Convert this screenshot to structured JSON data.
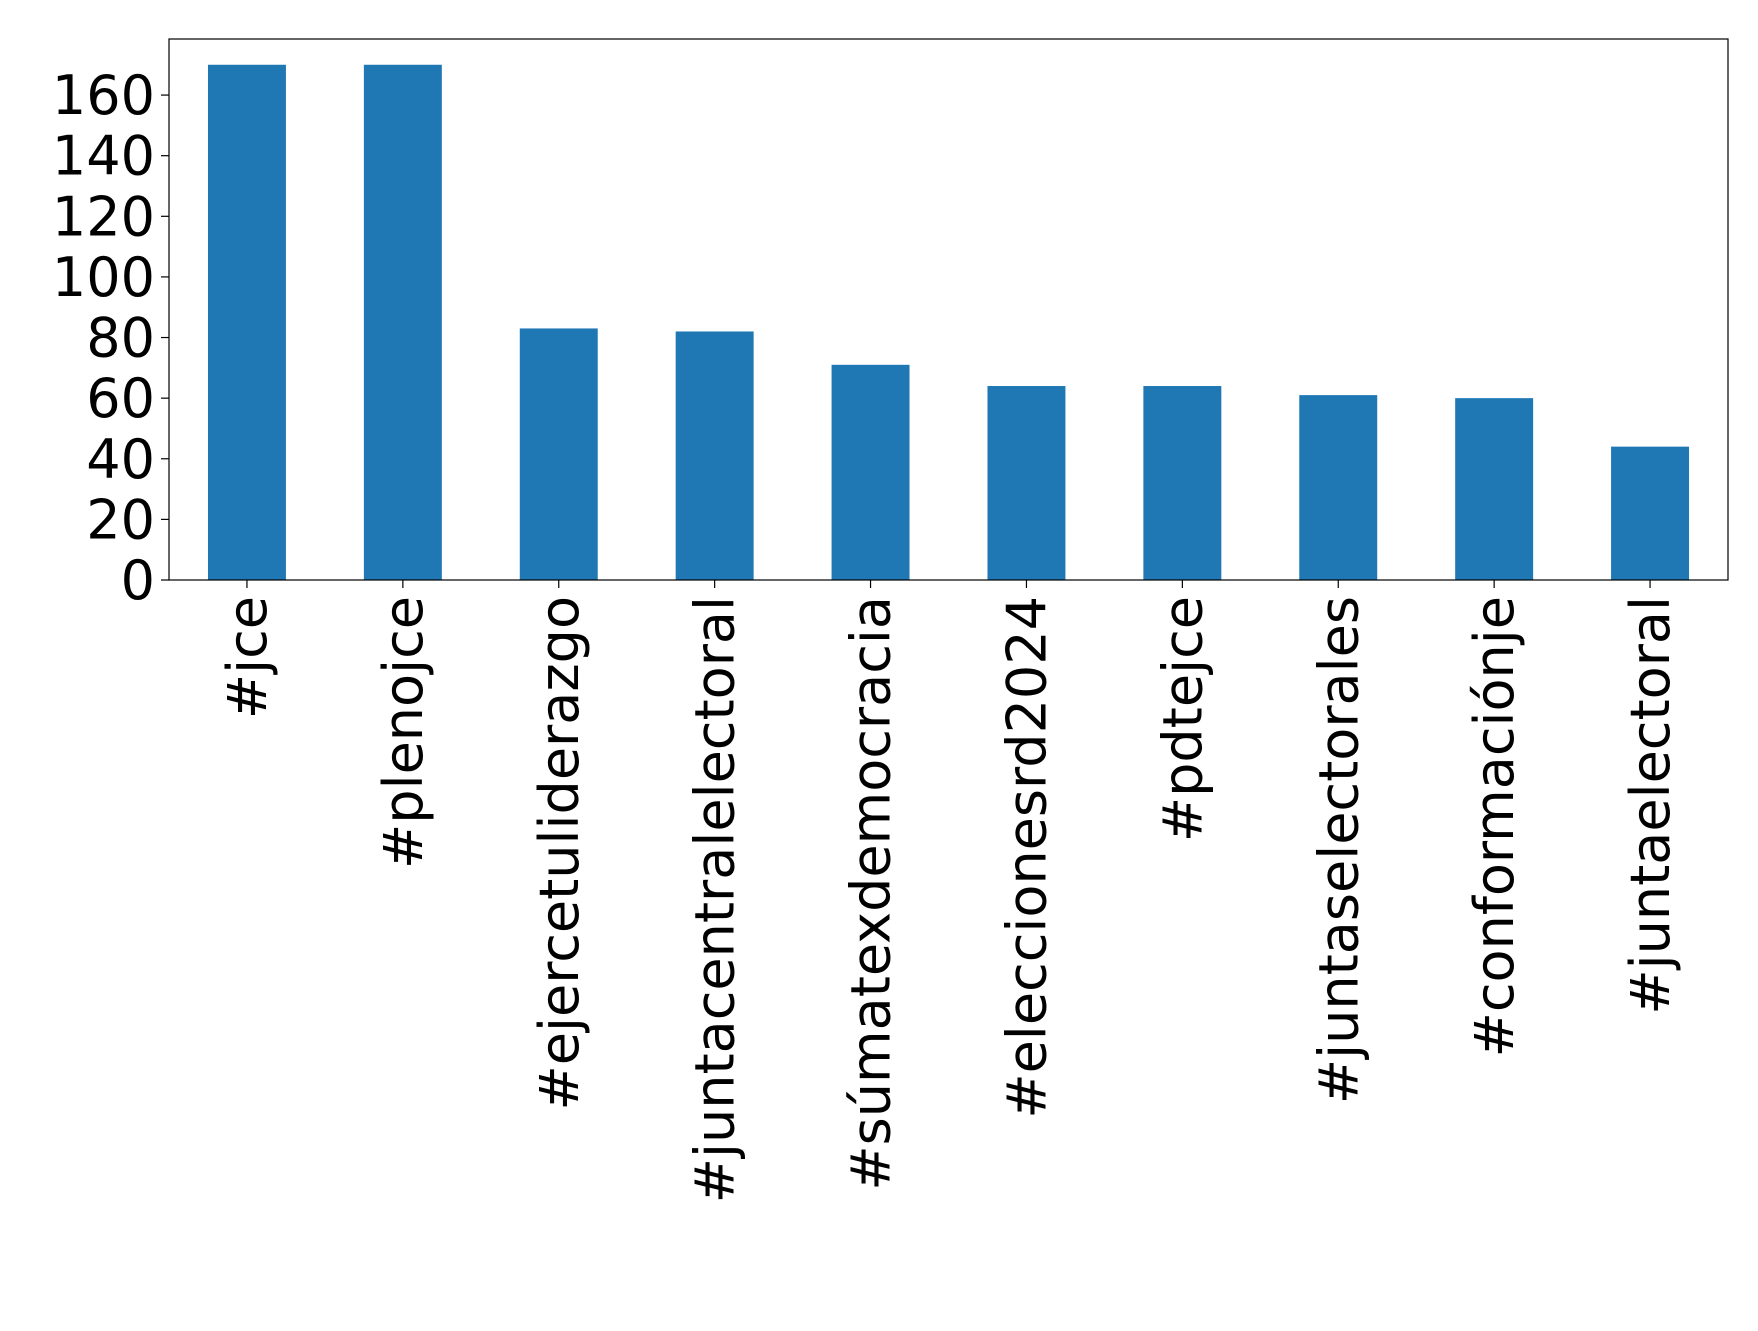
{
  "chart_data": {
    "type": "bar",
    "categories": [
      "#jce",
      "#plenojce",
      "#ejercetuliderazgo",
      "#juntacentralelectoral",
      "#súmatexdemocracia",
      "#eleccionesrd2024",
      "#pdtejce",
      "#juntaselectorales",
      "#conformaciónje",
      "#juntaelectoral"
    ],
    "values": [
      170,
      170,
      83,
      82,
      71,
      64,
      64,
      61,
      60,
      44
    ],
    "color": "#1f77b4",
    "ylim": [
      0,
      178.5
    ],
    "yticks": [
      0,
      20,
      40,
      60,
      80,
      100,
      120,
      140,
      160
    ]
  }
}
